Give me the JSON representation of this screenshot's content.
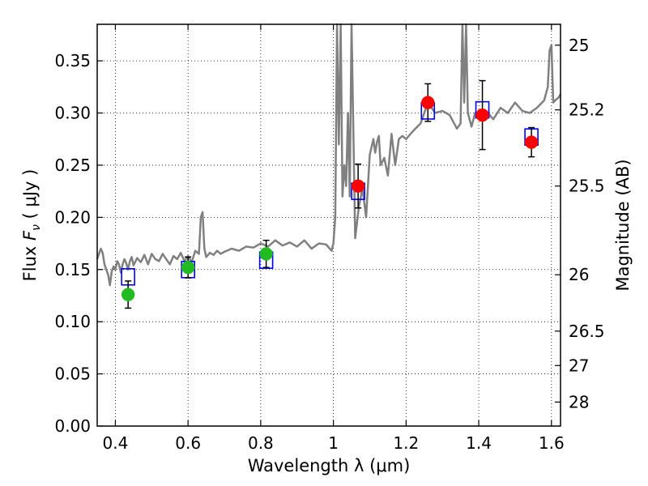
{
  "chart_data": {
    "type": "scatter",
    "xlabel": "Wavelength  λ (μm)",
    "ylabel_prefix": "Flux  ",
    "ylabel_symbol": "F",
    "ylabel_subscript": "ν",
    "ylabel_suffix": "  ( μJy )",
    "right_ylabel": "Magnitude (AB)",
    "xlim": [
      0.35,
      1.625
    ],
    "ylim": [
      0.0,
      0.385
    ],
    "x_ticks": [
      0.4,
      0.6,
      0.8,
      1.0,
      1.2,
      1.4,
      1.6
    ],
    "x_tick_labels": [
      "0.4",
      "0.6",
      "0.8",
      "1",
      "1.2",
      "1.4",
      "1.6"
    ],
    "y_ticks": [
      0.0,
      0.05,
      0.1,
      0.15,
      0.2,
      0.25,
      0.3,
      0.35
    ],
    "y_tick_labels": [
      "0.00",
      "0.05",
      "0.10",
      "0.15",
      "0.20",
      "0.25",
      "0.30",
      "0.35"
    ],
    "right_ticks": [
      {
        "label": "25",
        "flux": 0.365
      },
      {
        "label": "25.2",
        "flux": 0.303
      },
      {
        "label": "25.5",
        "flux": 0.23
      },
      {
        "label": "26",
        "flux": 0.145
      },
      {
        "label": "26.5",
        "flux": 0.091
      },
      {
        "label": "27",
        "flux": 0.058
      },
      {
        "label": "28",
        "flux": 0.023
      }
    ],
    "grid": true,
    "series": [
      {
        "kind": "model_spectrum",
        "color": "#808080",
        "x": [
          0.35,
          0.355,
          0.36,
          0.365,
          0.37,
          0.375,
          0.38,
          0.385,
          0.39,
          0.395,
          0.4,
          0.405,
          0.41,
          0.415,
          0.42,
          0.425,
          0.43,
          0.435,
          0.44,
          0.445,
          0.45,
          0.46,
          0.47,
          0.48,
          0.49,
          0.5,
          0.51,
          0.52,
          0.53,
          0.54,
          0.55,
          0.56,
          0.57,
          0.58,
          0.59,
          0.6,
          0.61,
          0.62,
          0.63,
          0.635,
          0.64,
          0.645,
          0.65,
          0.66,
          0.67,
          0.68,
          0.69,
          0.7,
          0.72,
          0.74,
          0.76,
          0.78,
          0.8,
          0.82,
          0.84,
          0.86,
          0.88,
          0.9,
          0.92,
          0.94,
          0.96,
          0.98,
          0.99,
          0.995,
          1.0,
          1.005,
          1.01,
          1.015,
          1.02,
          1.025,
          1.03,
          1.035,
          1.04,
          1.045,
          1.05,
          1.06,
          1.07,
          1.08,
          1.09,
          1.1,
          1.11,
          1.115,
          1.12,
          1.125,
          1.13,
          1.14,
          1.15,
          1.16,
          1.17,
          1.18,
          1.19,
          1.2,
          1.22,
          1.24,
          1.26,
          1.28,
          1.3,
          1.32,
          1.34,
          1.35,
          1.355,
          1.36,
          1.365,
          1.37,
          1.38,
          1.39,
          1.4,
          1.42,
          1.44,
          1.46,
          1.48,
          1.5,
          1.52,
          1.54,
          1.56,
          1.58,
          1.59,
          1.595,
          1.6,
          1.605,
          1.61,
          1.62,
          1.625
        ],
        "y": [
          0.16,
          0.165,
          0.17,
          0.166,
          0.155,
          0.15,
          0.145,
          0.135,
          0.148,
          0.153,
          0.15,
          0.158,
          0.155,
          0.147,
          0.155,
          0.16,
          0.156,
          0.15,
          0.158,
          0.162,
          0.154,
          0.161,
          0.157,
          0.164,
          0.155,
          0.165,
          0.16,
          0.158,
          0.165,
          0.16,
          0.155,
          0.163,
          0.16,
          0.166,
          0.158,
          0.163,
          0.157,
          0.168,
          0.165,
          0.2,
          0.205,
          0.17,
          0.162,
          0.166,
          0.164,
          0.168,
          0.165,
          0.167,
          0.17,
          0.168,
          0.172,
          0.171,
          0.175,
          0.172,
          0.178,
          0.173,
          0.176,
          0.172,
          0.178,
          0.17,
          0.175,
          0.174,
          0.17,
          0.168,
          0.175,
          0.2,
          0.4,
          0.27,
          0.4,
          0.22,
          0.25,
          0.23,
          0.3,
          0.22,
          0.4,
          0.18,
          0.21,
          0.228,
          0.2,
          0.26,
          0.275,
          0.262,
          0.272,
          0.278,
          0.25,
          0.257,
          0.24,
          0.28,
          0.25,
          0.275,
          0.278,
          0.275,
          0.283,
          0.29,
          0.31,
          0.3,
          0.302,
          0.298,
          0.285,
          0.29,
          0.4,
          0.31,
          0.4,
          0.3,
          0.287,
          0.3,
          0.296,
          0.302,
          0.294,
          0.305,
          0.3,
          0.31,
          0.302,
          0.3,
          0.305,
          0.312,
          0.325,
          0.36,
          0.365,
          0.31,
          0.312,
          0.315,
          0.318
        ]
      },
      {
        "kind": "model_flux",
        "marker": "square",
        "color": "#0000ff",
        "x": [
          0.435,
          0.6,
          0.815,
          1.068,
          1.26,
          1.41,
          1.545
        ],
        "y": [
          0.143,
          0.15,
          0.159,
          0.225,
          0.302,
          0.303,
          0.277
        ]
      },
      {
        "kind": "observed_detection_green",
        "marker": "circle",
        "color": "#22bb22",
        "x": [
          0.435,
          0.6,
          0.815
        ],
        "y": [
          0.126,
          0.152,
          0.165
        ],
        "yerr_low": [
          0.013,
          0.01,
          0.013
        ],
        "yerr_high": [
          0.013,
          0.01,
          0.013
        ]
      },
      {
        "kind": "observed_detection_red",
        "marker": "circle",
        "color": "#ff0000",
        "x": [
          1.068,
          1.26,
          1.41,
          1.545
        ],
        "y": [
          0.23,
          0.31,
          0.298,
          0.272
        ],
        "yerr_low": [
          0.021,
          0.018,
          0.033,
          0.014
        ],
        "yerr_high": [
          0.021,
          0.018,
          0.033,
          0.014
        ]
      }
    ]
  }
}
